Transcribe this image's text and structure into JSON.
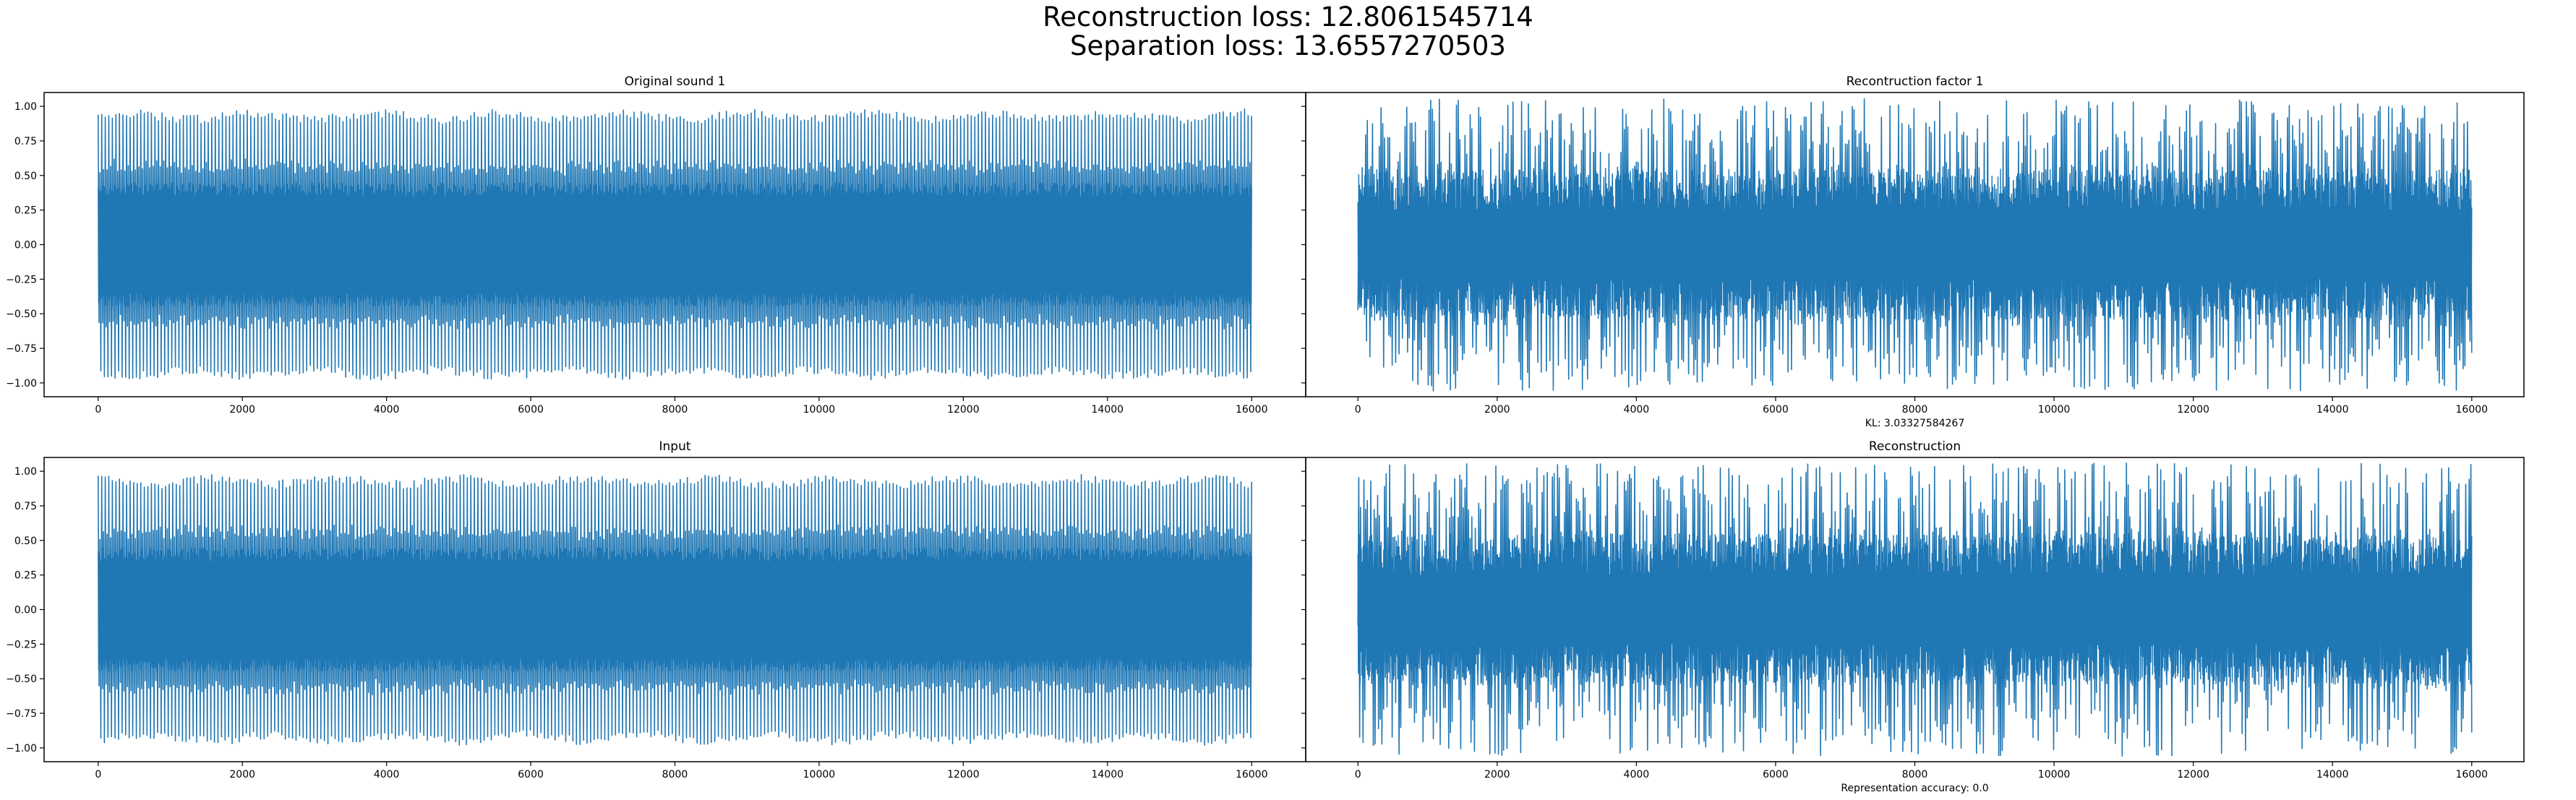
{
  "figure": {
    "suptitle_lines": [
      "Reconstruction loss: 12.8061545714",
      "Separation loss: 13.6557270503"
    ],
    "line_color": "#1f77b4"
  },
  "chart_data": [
    {
      "type": "line",
      "title": "Original sound 1",
      "xlabel": "",
      "ylabel": "",
      "x_range": [
        0,
        16000
      ],
      "xlim": [
        -750,
        16750
      ],
      "ylim": [
        -1.1,
        1.1
      ],
      "xticks": [
        0,
        2000,
        4000,
        6000,
        8000,
        10000,
        12000,
        14000,
        16000
      ],
      "yticks": [
        1.0,
        0.75,
        0.5,
        0.25,
        0.0,
        -0.25,
        -0.5,
        -0.75,
        -1.0
      ],
      "xticklabels": [
        "0",
        "2000",
        "4000",
        "6000",
        "8000",
        "10000",
        "12000",
        "14000",
        "16000"
      ],
      "yticklabels": [
        "1.00",
        "0.75",
        "0.50",
        "0.25",
        "0.00",
        "−0.25",
        "−0.50",
        "−0.75",
        "−1.00"
      ],
      "show_ytick_labels": true,
      "grid": false,
      "signal": "periodic",
      "envelope": {
        "outer_min": 0.87,
        "outer_max": 0.98,
        "inner_min": 0.55,
        "inner_max": 0.62
      }
    },
    {
      "type": "line",
      "title": "Recontruction factor 1",
      "xlabel": "KL: 3.03327584267",
      "ylabel": "",
      "x_range": [
        0,
        16000
      ],
      "xlim": [
        -750,
        16750
      ],
      "ylim": [
        -1.1,
        1.1
      ],
      "xticks": [
        0,
        2000,
        4000,
        6000,
        8000,
        10000,
        12000,
        14000,
        16000
      ],
      "yticks": [
        1.0,
        0.75,
        0.5,
        0.25,
        0.0,
        -0.25,
        -0.5,
        -0.75,
        -1.0
      ],
      "xticklabels": [
        "0",
        "2000",
        "4000",
        "6000",
        "8000",
        "10000",
        "12000",
        "14000",
        "16000"
      ],
      "yticklabels": [],
      "show_ytick_labels": false,
      "grid": false,
      "signal": "noisy",
      "envelope": {
        "outer_min": 0.65,
        "outer_max": 1.06,
        "inner_min": 0.35,
        "inner_max": 0.6
      }
    },
    {
      "type": "line",
      "title": "Input",
      "xlabel": "",
      "ylabel": "",
      "x_range": [
        0,
        16000
      ],
      "xlim": [
        -750,
        16750
      ],
      "ylim": [
        -1.1,
        1.1
      ],
      "xticks": [
        0,
        2000,
        4000,
        6000,
        8000,
        10000,
        12000,
        14000,
        16000
      ],
      "yticks": [
        1.0,
        0.75,
        0.5,
        0.25,
        0.0,
        -0.25,
        -0.5,
        -0.75,
        -1.0
      ],
      "xticklabels": [
        "0",
        "2000",
        "4000",
        "6000",
        "8000",
        "10000",
        "12000",
        "14000",
        "16000"
      ],
      "yticklabels": [
        "1.00",
        "0.75",
        "0.50",
        "0.25",
        "0.00",
        "−0.25",
        "−0.50",
        "−0.75",
        "−1.00"
      ],
      "show_ytick_labels": true,
      "grid": false,
      "signal": "periodic",
      "envelope": {
        "outer_min": 0.87,
        "outer_max": 0.98,
        "inner_min": 0.55,
        "inner_max": 0.62
      }
    },
    {
      "type": "line",
      "title": "Reconstruction",
      "xlabel": "Representation accuracy: 0.0",
      "ylabel": "",
      "x_range": [
        0,
        16000
      ],
      "xlim": [
        -750,
        16750
      ],
      "ylim": [
        -1.1,
        1.1
      ],
      "xticks": [
        0,
        2000,
        4000,
        6000,
        8000,
        10000,
        12000,
        14000,
        16000
      ],
      "yticks": [
        1.0,
        0.75,
        0.5,
        0.25,
        0.0,
        -0.25,
        -0.5,
        -0.75,
        -1.0
      ],
      "xticklabels": [
        "0",
        "2000",
        "4000",
        "6000",
        "8000",
        "10000",
        "12000",
        "14000",
        "16000"
      ],
      "yticklabels": [],
      "show_ytick_labels": false,
      "grid": false,
      "signal": "noisy",
      "envelope": {
        "outer_min": 0.65,
        "outer_max": 1.06,
        "inner_min": 0.35,
        "inner_max": 0.6
      }
    }
  ]
}
